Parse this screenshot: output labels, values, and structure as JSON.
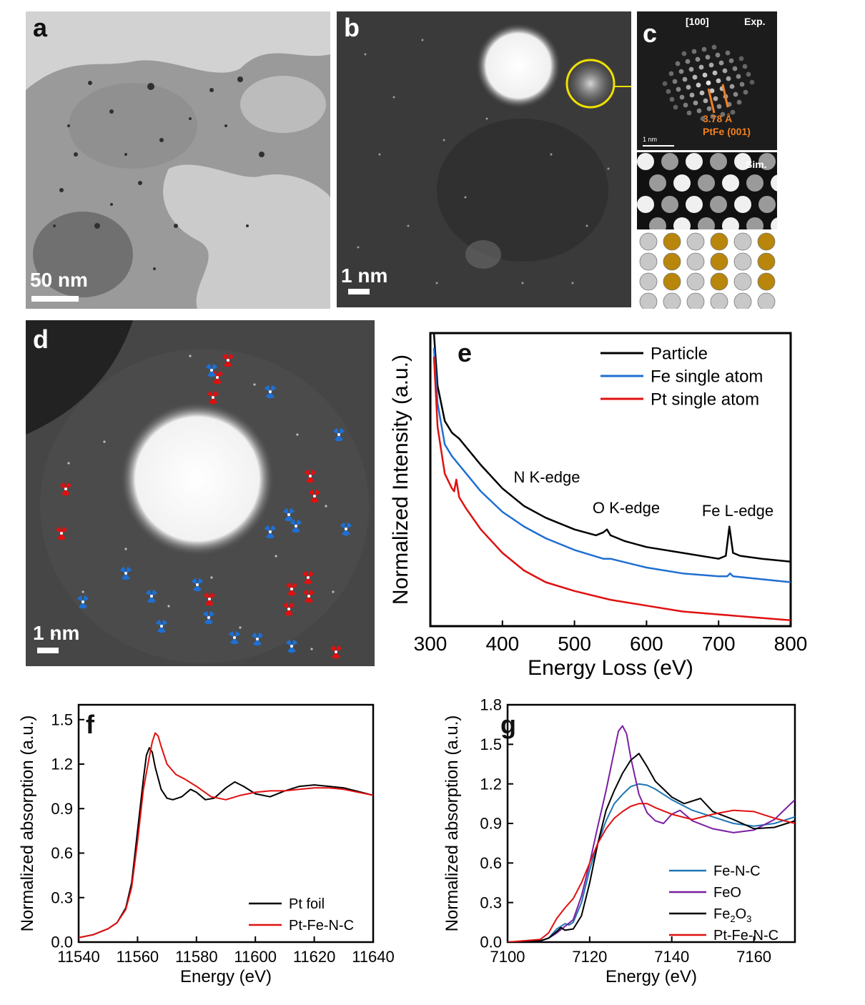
{
  "panels": {
    "a": {
      "label": "a",
      "scale_bar": "50 nm"
    },
    "b": {
      "label": "b",
      "scale_bar": "1 nm"
    },
    "c": {
      "label": "c",
      "zone_axis": "[100]",
      "exp": "Exp.",
      "sim": "Sim.",
      "spacing": "3.78 Å",
      "plane": "PtFe  (001)",
      "scale_bar": "1 nm"
    },
    "d": {
      "label": "d",
      "scale_bar": "1 nm"
    }
  },
  "colors": {
    "black": "#000000",
    "blue": "#1f6fd1",
    "red": "#e01010",
    "purple": "#7b1fa2",
    "teal": "#1f77b4",
    "pt_atom": "#c8c8c8",
    "fe_atom": "#b8860b",
    "ring": "#f0e000",
    "label_orange": "#f08020"
  },
  "chart_data": [
    {
      "id": "e",
      "type": "line",
      "panel_label": "e",
      "xlabel": "Energy Loss (eV)",
      "ylabel": "Normalized Intensity (a.u.)",
      "xlim": [
        300,
        800
      ],
      "xticks": [
        300,
        400,
        500,
        600,
        700,
        800
      ],
      "ylim": [
        0,
        1
      ],
      "yticks_shown": false,
      "legend_position": "top-right",
      "annotations": [
        "N K-edge",
        "O K-edge",
        "Fe L-edge"
      ],
      "series": [
        {
          "name": "Particle",
          "color": "#000000",
          "x": [
            305,
            310,
            320,
            330,
            340,
            350,
            370,
            400,
            430,
            460,
            500,
            530,
            540,
            545,
            550,
            570,
            600,
            650,
            700,
            710,
            715,
            720,
            730,
            760,
            800
          ],
          "y": [
            1.0,
            0.82,
            0.7,
            0.66,
            0.64,
            0.61,
            0.55,
            0.47,
            0.41,
            0.37,
            0.33,
            0.31,
            0.32,
            0.33,
            0.31,
            0.29,
            0.27,
            0.25,
            0.23,
            0.24,
            0.34,
            0.25,
            0.24,
            0.23,
            0.22
          ]
        },
        {
          "name": "Fe single atom",
          "color": "#1f6fd1",
          "x": [
            305,
            310,
            320,
            330,
            340,
            350,
            370,
            400,
            430,
            460,
            500,
            540,
            550,
            600,
            650,
            700,
            712,
            716,
            720,
            760,
            800
          ],
          "y": [
            0.95,
            0.76,
            0.62,
            0.58,
            0.55,
            0.52,
            0.46,
            0.39,
            0.34,
            0.3,
            0.26,
            0.23,
            0.23,
            0.2,
            0.18,
            0.17,
            0.17,
            0.18,
            0.17,
            0.16,
            0.15
          ]
        },
        {
          "name": "Pt single atom",
          "color": "#e01010",
          "x": [
            305,
            310,
            320,
            330,
            333,
            336,
            340,
            350,
            370,
            400,
            430,
            460,
            500,
            550,
            600,
            650,
            700,
            750,
            800
          ],
          "y": [
            0.92,
            0.68,
            0.52,
            0.47,
            0.46,
            0.5,
            0.44,
            0.4,
            0.33,
            0.25,
            0.19,
            0.15,
            0.12,
            0.09,
            0.07,
            0.05,
            0.04,
            0.03,
            0.02
          ]
        }
      ]
    },
    {
      "id": "f",
      "type": "line",
      "panel_label": "f",
      "xlabel": "Energy (eV)",
      "ylabel": "Normalized absorption (a.u.)",
      "xlim": [
        11540,
        11640
      ],
      "xticks": [
        11540,
        11560,
        11580,
        11600,
        11620,
        11640
      ],
      "ylim": [
        0,
        1.6
      ],
      "yticks": [
        0.0,
        0.3,
        0.6,
        0.9,
        1.2,
        1.5
      ],
      "legend_position": "bottom-right",
      "series": [
        {
          "name": "Pt foil",
          "color": "#000000",
          "x": [
            11540,
            11545,
            11550,
            11553,
            11556,
            11558,
            11560,
            11562,
            11563,
            11564,
            11565,
            11566,
            11568,
            11570,
            11572,
            11575,
            11578,
            11580,
            11583,
            11586,
            11590,
            11593,
            11596,
            11600,
            11605,
            11610,
            11615,
            11620,
            11625,
            11630,
            11640
          ],
          "y": [
            0.03,
            0.05,
            0.09,
            0.13,
            0.23,
            0.4,
            0.75,
            1.1,
            1.26,
            1.31,
            1.28,
            1.18,
            1.03,
            0.97,
            0.96,
            0.98,
            1.03,
            1.01,
            0.96,
            0.97,
            1.04,
            1.08,
            1.05,
            1.0,
            0.98,
            1.02,
            1.05,
            1.06,
            1.05,
            1.04,
            0.99
          ]
        },
        {
          "name": "Pt-Fe-N-C",
          "color": "#e01010",
          "x": [
            11540,
            11545,
            11550,
            11553,
            11556,
            11558,
            11560,
            11562,
            11564,
            11565,
            11566,
            11567,
            11568,
            11570,
            11573,
            11576,
            11580,
            11585,
            11590,
            11595,
            11600,
            11605,
            11610,
            11615,
            11620,
            11625,
            11630,
            11640
          ],
          "y": [
            0.03,
            0.05,
            0.09,
            0.13,
            0.22,
            0.37,
            0.68,
            1.03,
            1.25,
            1.35,
            1.41,
            1.39,
            1.32,
            1.2,
            1.13,
            1.1,
            1.05,
            0.98,
            0.96,
            0.99,
            1.01,
            1.02,
            1.02,
            1.03,
            1.04,
            1.04,
            1.03,
            0.99
          ]
        }
      ]
    },
    {
      "id": "g",
      "type": "line",
      "panel_label": "g",
      "xlabel": "Energy (eV)",
      "ylabel": "Normalized absorption (a.u.)",
      "xlim": [
        7100,
        7170
      ],
      "xticks": [
        7100,
        7120,
        7140,
        7160
      ],
      "ylim": [
        0,
        1.8
      ],
      "yticks": [
        0.0,
        0.3,
        0.6,
        0.9,
        1.2,
        1.5,
        1.8
      ],
      "legend_position": "bottom-right",
      "series": [
        {
          "name": "Fe-N-C",
          "color": "#1f77b4",
          "x": [
            7100,
            7108,
            7110,
            7112,
            7114,
            7115,
            7116,
            7118,
            7120,
            7122,
            7124,
            7126,
            7128,
            7130,
            7132,
            7134,
            7136,
            7140,
            7145,
            7150,
            7155,
            7160,
            7165,
            7170
          ],
          "y": [
            0.0,
            0.01,
            0.03,
            0.1,
            0.14,
            0.13,
            0.15,
            0.3,
            0.55,
            0.75,
            0.92,
            1.05,
            1.12,
            1.18,
            1.2,
            1.19,
            1.16,
            1.08,
            1.0,
            0.95,
            0.9,
            0.88,
            0.9,
            0.95
          ]
        },
        {
          "name": "FeO",
          "color": "#7b1fa2",
          "x": [
            7100,
            7108,
            7110,
            7112,
            7114,
            7116,
            7118,
            7120,
            7122,
            7124,
            7126,
            7127,
            7128,
            7129,
            7130,
            7132,
            7134,
            7136,
            7138,
            7140,
            7142,
            7145,
            7150,
            7155,
            7160,
            7165,
            7170
          ],
          "y": [
            0.0,
            0.01,
            0.03,
            0.07,
            0.12,
            0.17,
            0.35,
            0.6,
            0.88,
            1.15,
            1.45,
            1.6,
            1.64,
            1.58,
            1.4,
            1.12,
            0.98,
            0.92,
            0.9,
            0.97,
            1.0,
            0.92,
            0.86,
            0.83,
            0.85,
            0.93,
            1.08
          ]
        },
        {
          "name": "Fe2O3",
          "name_prefix": "Fe",
          "name_sub": "2",
          "name_mid": "O",
          "name_sub2": "3",
          "color": "#000000",
          "x": [
            7100,
            7108,
            7110,
            7112,
            7113,
            7114,
            7116,
            7118,
            7120,
            7122,
            7124,
            7126,
            7128,
            7130,
            7132,
            7134,
            7136,
            7138,
            7140,
            7143,
            7147,
            7150,
            7155,
            7160,
            7165,
            7170
          ],
          "y": [
            0.0,
            0.01,
            0.03,
            0.08,
            0.11,
            0.09,
            0.1,
            0.2,
            0.45,
            0.75,
            1.0,
            1.15,
            1.28,
            1.38,
            1.43,
            1.33,
            1.22,
            1.16,
            1.1,
            1.05,
            1.09,
            0.99,
            0.93,
            0.86,
            0.87,
            0.92
          ]
        },
        {
          "name": "Pt-Fe-N-C",
          "color": "#e01010",
          "x": [
            7100,
            7108,
            7110,
            7112,
            7114,
            7116,
            7118,
            7120,
            7122,
            7124,
            7126,
            7128,
            7130,
            7132,
            7134,
            7136,
            7140,
            7145,
            7150,
            7155,
            7160,
            7165,
            7170
          ],
          "y": [
            0.0,
            0.02,
            0.07,
            0.18,
            0.26,
            0.33,
            0.45,
            0.6,
            0.75,
            0.86,
            0.94,
            0.99,
            1.03,
            1.05,
            1.05,
            1.02,
            0.97,
            0.93,
            0.97,
            1.0,
            0.99,
            0.94,
            0.9
          ]
        }
      ]
    }
  ]
}
